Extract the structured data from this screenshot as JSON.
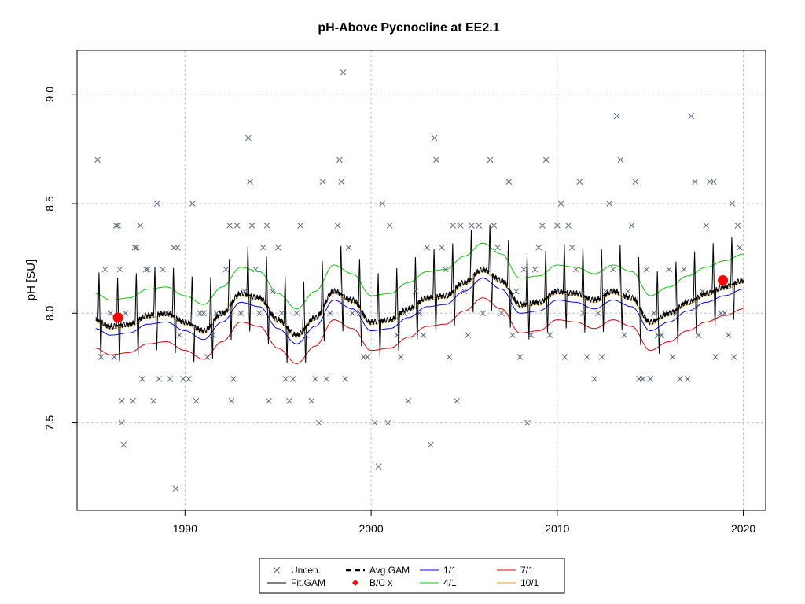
{
  "chart_data": {
    "type": "scatter",
    "title": "pH-Above Pycnocline at EE2.1",
    "xlabel": "",
    "ylabel": "pH [SU]",
    "xlim": [
      1984.2,
      2021.2
    ],
    "ylim": [
      7.1,
      9.2
    ],
    "xticks": [
      1990,
      2000,
      2010,
      2020
    ],
    "xtick_labels": [
      "1990",
      "2000",
      "2010",
      "2020"
    ],
    "yticks": [
      7.5,
      8.0,
      8.5,
      9.0
    ],
    "ytick_labels": [
      "7.5",
      "8.0",
      "8.5",
      "9.0"
    ],
    "grid": true,
    "legend_position": "bottom-center",
    "legend": [
      {
        "label": "Uncen.",
        "key": "uncen"
      },
      {
        "label": "Avg.GAM",
        "key": "avg"
      },
      {
        "label": "1/1",
        "key": "q1"
      },
      {
        "label": "7/1",
        "key": "q7"
      },
      {
        "label": "Fit.GAM",
        "key": "fit"
      },
      {
        "label": "B/C x",
        "key": "bc"
      },
      {
        "label": "4/1",
        "key": "q4"
      },
      {
        "label": "10/1",
        "key": "q10"
      }
    ],
    "colors": {
      "uncen": "#5a6a7e",
      "fit": "#000000",
      "avg": "#000000",
      "bc": "#ff0000",
      "q1": "#0000ff",
      "q4": "#00cc00",
      "q7": "#e00000",
      "q10": "#e8a020"
    },
    "bc_points": [
      {
        "x": 1986.4,
        "y": 7.98
      },
      {
        "x": 2018.9,
        "y": 8.15
      }
    ],
    "avg_gam": {
      "x": [
        1985.2,
        1986,
        1987,
        1988,
        1989,
        1990,
        1991,
        1992,
        1993,
        1994,
        1995,
        1996,
        1997,
        1998,
        1999,
        2000,
        2001,
        2002,
        2003,
        2004,
        2005,
        2006,
        2007,
        2008,
        2009,
        2010,
        2011,
        2012,
        2013,
        2014,
        2015,
        2016,
        2017,
        2018,
        2019,
        2020
      ],
      "y": [
        7.97,
        7.94,
        7.95,
        7.99,
        8.0,
        7.96,
        7.92,
        8.0,
        8.09,
        8.07,
        7.97,
        7.9,
        7.98,
        8.1,
        8.06,
        7.96,
        7.97,
        8.02,
        8.07,
        8.08,
        8.14,
        8.2,
        8.15,
        8.04,
        8.05,
        8.1,
        8.09,
        8.06,
        8.1,
        8.07,
        7.96,
        8.0,
        8.05,
        8.09,
        8.12,
        8.15
      ]
    },
    "fit_gam": {
      "amplitude": 0.13,
      "spike_points": [
        1985.4,
        1986.4,
        1987.4,
        1988.4,
        1989.4,
        1990.4,
        1991.4,
        1992.4,
        1993.4,
        1994.4,
        1995.4,
        1996.4,
        1997.4,
        1998.4,
        1999.4,
        2000.4,
        2001.4,
        2002.4,
        2003.4,
        2004.4,
        2005.4,
        2006.4,
        2007.4,
        2008.4,
        2009.4,
        2010.4,
        2011.4,
        2012.4,
        2013.4,
        2014.4,
        2015.4,
        2016.4,
        2017.4,
        2018.4,
        2019.4
      ]
    },
    "quantile_offsets": {
      "q1": -0.04,
      "q4": 0.12,
      "q7": -0.13,
      "q10": 0.0
    },
    "series": [
      {
        "name": "Uncen.",
        "points": [
          [
            1985.3,
            8.7
          ],
          [
            1985.5,
            7.8
          ],
          [
            1985.7,
            8.2
          ],
          [
            1986.0,
            8.0
          ],
          [
            1986.2,
            7.8
          ],
          [
            1986.3,
            8.4
          ],
          [
            1986.4,
            8.4
          ],
          [
            1986.5,
            8.2
          ],
          [
            1986.6,
            7.6
          ],
          [
            1986.6,
            7.5
          ],
          [
            1986.7,
            7.4
          ],
          [
            1986.8,
            8.0
          ],
          [
            1987.2,
            7.6
          ],
          [
            1987.3,
            8.3
          ],
          [
            1987.4,
            8.3
          ],
          [
            1987.6,
            8.4
          ],
          [
            1987.7,
            7.7
          ],
          [
            1987.9,
            8.2
          ],
          [
            1988.0,
            8.2
          ],
          [
            1988.3,
            7.6
          ],
          [
            1988.5,
            8.5
          ],
          [
            1988.6,
            7.7
          ],
          [
            1988.8,
            8.2
          ],
          [
            1989.0,
            8.0
          ],
          [
            1989.2,
            7.7
          ],
          [
            1989.4,
            8.3
          ],
          [
            1989.5,
            7.2
          ],
          [
            1989.6,
            8.3
          ],
          [
            1989.7,
            7.9
          ],
          [
            1989.9,
            7.7
          ],
          [
            1990.2,
            7.7
          ],
          [
            1990.4,
            8.5
          ],
          [
            1990.6,
            7.6
          ],
          [
            1990.8,
            8.0
          ],
          [
            1991.0,
            8.0
          ],
          [
            1991.2,
            7.8
          ],
          [
            1991.5,
            7.9
          ],
          [
            1991.7,
            8.0
          ],
          [
            1992.0,
            8.0
          ],
          [
            1992.2,
            8.2
          ],
          [
            1992.4,
            8.4
          ],
          [
            1992.5,
            7.6
          ],
          [
            1992.6,
            7.7
          ],
          [
            1992.8,
            8.4
          ],
          [
            1993.0,
            8.0
          ],
          [
            1993.2,
            8.1
          ],
          [
            1993.4,
            8.8
          ],
          [
            1993.5,
            8.6
          ],
          [
            1993.6,
            8.4
          ],
          [
            1993.8,
            8.2
          ],
          [
            1994.0,
            8.0
          ],
          [
            1994.2,
            8.3
          ],
          [
            1994.4,
            8.4
          ],
          [
            1994.5,
            7.6
          ],
          [
            1994.7,
            8.1
          ],
          [
            1995.0,
            8.3
          ],
          [
            1995.2,
            8.0
          ],
          [
            1995.4,
            7.7
          ],
          [
            1995.6,
            7.6
          ],
          [
            1995.8,
            7.7
          ],
          [
            1996.0,
            8.0
          ],
          [
            1996.2,
            8.4
          ],
          [
            1996.5,
            7.9
          ],
          [
            1996.8,
            7.6
          ],
          [
            1997.0,
            7.7
          ],
          [
            1997.2,
            7.5
          ],
          [
            1997.4,
            8.6
          ],
          [
            1997.6,
            7.7
          ],
          [
            1997.8,
            8.0
          ],
          [
            1998.0,
            8.1
          ],
          [
            1998.2,
            8.4
          ],
          [
            1998.3,
            8.7
          ],
          [
            1998.4,
            8.6
          ],
          [
            1998.5,
            9.1
          ],
          [
            1998.6,
            7.7
          ],
          [
            1998.8,
            8.3
          ],
          [
            1999.0,
            8.0
          ],
          [
            1999.4,
            8.0
          ],
          [
            1999.6,
            7.8
          ],
          [
            1999.8,
            7.8
          ],
          [
            2000.2,
            7.5
          ],
          [
            2000.4,
            7.3
          ],
          [
            2000.6,
            8.5
          ],
          [
            2000.9,
            7.5
          ],
          [
            2001.0,
            8.4
          ],
          [
            2001.4,
            7.9
          ],
          [
            2001.6,
            7.8
          ],
          [
            2001.8,
            8.0
          ],
          [
            2002.0,
            7.6
          ],
          [
            2002.4,
            8.1
          ],
          [
            2002.6,
            8.0
          ],
          [
            2002.8,
            7.9
          ],
          [
            2003.0,
            8.3
          ],
          [
            2003.2,
            7.4
          ],
          [
            2003.4,
            8.8
          ],
          [
            2003.5,
            8.7
          ],
          [
            2003.8,
            8.3
          ],
          [
            2004.0,
            8.2
          ],
          [
            2004.2,
            7.8
          ],
          [
            2004.4,
            8.4
          ],
          [
            2004.6,
            7.6
          ],
          [
            2004.8,
            8.4
          ],
          [
            2005.0,
            8.1
          ],
          [
            2005.2,
            7.9
          ],
          [
            2005.4,
            8.4
          ],
          [
            2005.8,
            8.4
          ],
          [
            2006.0,
            8.0
          ],
          [
            2006.4,
            8.7
          ],
          [
            2006.6,
            8.4
          ],
          [
            2006.8,
            8.3
          ],
          [
            2007.0,
            8.0
          ],
          [
            2007.4,
            8.6
          ],
          [
            2007.6,
            7.9
          ],
          [
            2007.8,
            8.1
          ],
          [
            2008.0,
            7.8
          ],
          [
            2008.2,
            8.2
          ],
          [
            2008.4,
            7.5
          ],
          [
            2008.6,
            7.9
          ],
          [
            2008.8,
            8.2
          ],
          [
            2009.0,
            8.3
          ],
          [
            2009.2,
            8.4
          ],
          [
            2009.4,
            8.7
          ],
          [
            2009.6,
            7.9
          ],
          [
            2010.0,
            8.4
          ],
          [
            2010.2,
            8.5
          ],
          [
            2010.4,
            7.8
          ],
          [
            2010.6,
            8.4
          ],
          [
            2010.8,
            8.3
          ],
          [
            2011.0,
            8.2
          ],
          [
            2011.2,
            8.6
          ],
          [
            2011.4,
            8.0
          ],
          [
            2011.6,
            7.8
          ],
          [
            2012.0,
            7.7
          ],
          [
            2012.2,
            8.0
          ],
          [
            2012.4,
            7.8
          ],
          [
            2012.6,
            8.1
          ],
          [
            2012.8,
            8.5
          ],
          [
            2013.0,
            8.2
          ],
          [
            2013.2,
            8.9
          ],
          [
            2013.4,
            8.7
          ],
          [
            2013.6,
            7.9
          ],
          [
            2013.8,
            8.1
          ],
          [
            2014.0,
            8.4
          ],
          [
            2014.2,
            8.6
          ],
          [
            2014.4,
            7.7
          ],
          [
            2014.6,
            7.7
          ],
          [
            2014.8,
            8.2
          ],
          [
            2015.0,
            7.7
          ],
          [
            2015.2,
            8.0
          ],
          [
            2015.4,
            7.9
          ],
          [
            2015.6,
            7.9
          ],
          [
            2015.8,
            8.0
          ],
          [
            2016.0,
            8.2
          ],
          [
            2016.2,
            7.8
          ],
          [
            2016.4,
            8.0
          ],
          [
            2016.6,
            7.7
          ],
          [
            2016.8,
            8.2
          ],
          [
            2017.0,
            7.7
          ],
          [
            2017.2,
            8.9
          ],
          [
            2017.4,
            8.6
          ],
          [
            2017.6,
            7.9
          ],
          [
            2017.8,
            8.1
          ],
          [
            2018.0,
            8.4
          ],
          [
            2018.2,
            8.6
          ],
          [
            2018.4,
            8.6
          ],
          [
            2018.5,
            7.8
          ],
          [
            2018.8,
            8.0
          ],
          [
            2019.0,
            8.0
          ],
          [
            2019.2,
            7.9
          ],
          [
            2019.4,
            8.5
          ],
          [
            2019.5,
            7.8
          ],
          [
            2019.7,
            8.4
          ],
          [
            2019.8,
            8.3
          ]
        ]
      }
    ]
  }
}
